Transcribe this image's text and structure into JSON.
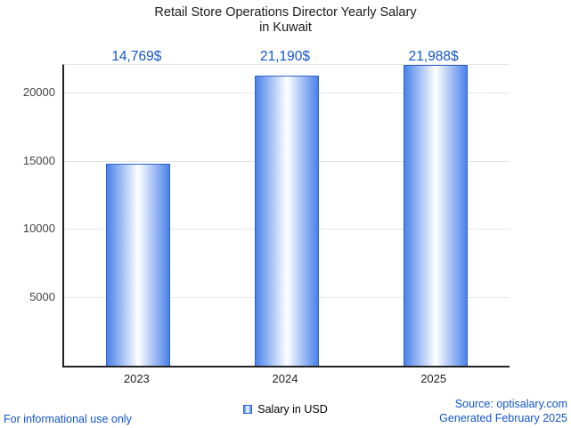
{
  "chart_data": {
    "type": "bar",
    "title": "Retail Store Operations Director Yearly Salary in Kuwait",
    "title_lines": [
      "Retail Store Operations Director Yearly Salary",
      "in Kuwait"
    ],
    "categories": [
      "2023",
      "2024",
      "2025"
    ],
    "values": [
      14769,
      21190,
      21988
    ],
    "value_labels": [
      "14,769$",
      "21,190$",
      "21,988$"
    ],
    "series": [
      {
        "name": "Salary in USD",
        "values": [
          14769,
          21190,
          21988
        ]
      }
    ],
    "legend": "Salary in USD",
    "legend_position": "bottom",
    "xlabel": "",
    "ylabel": "",
    "ylim": [
      0,
      22000
    ],
    "yticks": [
      5000,
      10000,
      15000,
      20000
    ],
    "grid": true
  },
  "footer": {
    "disclaimer": "For informational use only",
    "source": "Source: optisalary.com",
    "generated": "Generated February 2025"
  },
  "colors": {
    "bar_blue": "#4a82ea",
    "bar_center": "#ffffff",
    "bar_border": "#2f62c9",
    "value_label_blue": "#1155cc",
    "link_blue": "#1155cc",
    "axis_color": "#222222",
    "gridline_color": "#e6e6e6",
    "title_color": "#1a1a1a"
  }
}
